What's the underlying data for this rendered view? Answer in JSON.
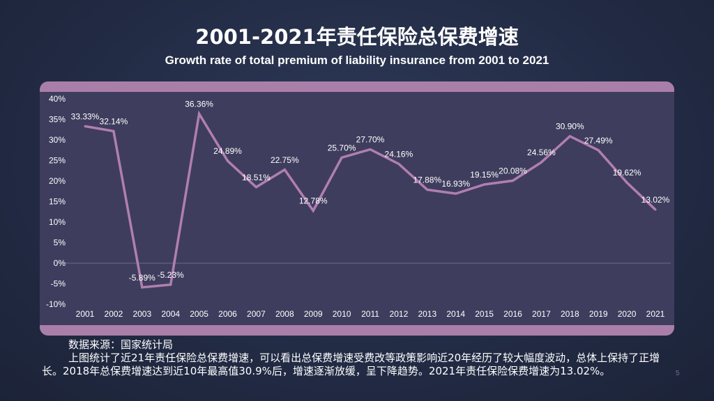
{
  "title": "2001-2021年责任保险总保费增速",
  "subtitle": "Growth rate of total premium of liability insurance from 2001 to 2021",
  "description": {
    "source": "数据来源：国家统计局",
    "body": "上图统计了近21年责任保险总保费增速，可以看出总保费增速受费改等政策影响近20年经历了较大幅度波动，总体上保持了正增长。2018年总保费增速达到近10年最高值30.9%后，增速逐渐放缓，呈下降趋势。2021年责任保险保费增速为13.02%。"
  },
  "page_number": "5",
  "colors": {
    "panel": "#3f3d5e",
    "band": "#a97fa9",
    "line": "#b07fb0",
    "background": "#222b44"
  },
  "chart_data": {
    "type": "line",
    "categories": [
      "2001",
      "2002",
      "2003",
      "2004",
      "2005",
      "2006",
      "2007",
      "2008",
      "2009",
      "2010",
      "2011",
      "2012",
      "2013",
      "2014",
      "2015",
      "2016",
      "2017",
      "2018",
      "2019",
      "2020",
      "2021"
    ],
    "values": [
      33.33,
      32.14,
      -5.89,
      -5.23,
      36.36,
      24.89,
      18.51,
      22.75,
      12.78,
      25.7,
      27.7,
      24.16,
      17.88,
      16.93,
      19.15,
      20.08,
      24.56,
      30.9,
      27.49,
      19.62,
      13.02
    ],
    "data_labels": [
      "33.33%",
      "32.14%",
      "-5.89%",
      "-5.23%",
      "36.36%",
      "24.89%",
      "18.51%",
      "22.75%",
      "12.78%",
      "25.70%",
      "27.70%",
      "24.16%",
      "17.88%",
      "16.93%",
      "19.15%",
      "20.08%",
      "24.56%",
      "30.90%",
      "27.49%",
      "19.62%",
      "13.02%"
    ],
    "ylim": [
      -10,
      40
    ],
    "yticks": [
      "-10%",
      "-5%",
      "0%",
      "5%",
      "10%",
      "15%",
      "20%",
      "25%",
      "30%",
      "35%",
      "40%"
    ],
    "grid": false,
    "legend": "none"
  }
}
